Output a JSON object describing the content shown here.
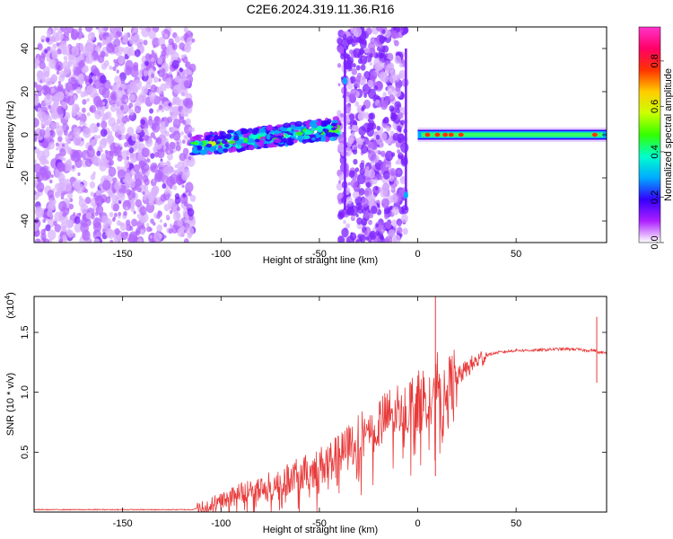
{
  "page": {
    "title": "C2E6.2024.319.11.36.R16"
  },
  "chart_data": [
    {
      "type": "heatmap",
      "name": "spectrogram",
      "xlabel": "Height of straight line (km)",
      "ylabel": "Frequency (Hz)",
      "xlim": [
        -195,
        96
      ],
      "ylim": [
        -50,
        50
      ],
      "xticks": [
        -150,
        -100,
        -50,
        0,
        50
      ],
      "yticks": [
        -40,
        -20,
        0,
        20,
        40
      ],
      "colorbar": {
        "label": "Normalized spectral amplitude",
        "range": [
          0,
          0.95
        ],
        "ticks": [
          0.0,
          0.2,
          0.4,
          0.6,
          0.8
        ],
        "tick_labels": [
          "0.0",
          "0.2",
          "0.4",
          "0.6",
          "0.8"
        ],
        "colormap": [
          "#ffffff",
          "#ad1fff",
          "#3300ff",
          "#00aaff",
          "#00ffcc",
          "#33ff00",
          "#ccff00",
          "#ffcc00",
          "#ff3300",
          "#ff0066",
          "#ff33cc"
        ]
      },
      "regions": [
        {
          "description": "broadband noise",
          "x_range": [
            -195,
            -114
          ],
          "freq_range": [
            -50,
            50
          ],
          "amplitude": 0.08
        },
        {
          "description": "signal band",
          "x_range": [
            -114,
            -40
          ],
          "freq_center_start": -5,
          "freq_center_end": 3,
          "amplitude": 0.35
        },
        {
          "description": "broadband noise",
          "x_range": [
            -40,
            -6
          ],
          "freq_range": [
            -50,
            50
          ],
          "amplitude": 0.12
        },
        {
          "description": "carrier band",
          "x_range": [
            0,
            96
          ],
          "freq_center": 0,
          "amplitude": 0.55
        }
      ]
    },
    {
      "type": "line",
      "name": "snr",
      "xlabel": "Height of straight line (km)",
      "ylabel": "SNR (10 * v/v)",
      "y_multiplier_label": "(x10",
      "y_multiplier_exponent": "4",
      "y_multiplier_close": ")",
      "xlim": [
        -195,
        96
      ],
      "ylim": [
        0,
        1.8
      ],
      "xticks": [
        -150,
        -100,
        -50,
        0,
        50
      ],
      "yticks": [
        0.5,
        1.0,
        1.5
      ],
      "ytick_labels": [
        "0.5",
        "1.0",
        "1.5"
      ],
      "color": "#e83a3a",
      "series": [
        {
          "x": [
            -195,
            -150,
            -115,
            -110,
            -105,
            -100,
            -95,
            -90,
            -85,
            -80,
            -75,
            -70,
            -65,
            -60,
            -55,
            -50,
            -45,
            -40,
            -35,
            -30,
            -25,
            -20,
            -15,
            -10,
            -5,
            0,
            5,
            8,
            10,
            12,
            15,
            20,
            25,
            30,
            35,
            40,
            50,
            60,
            70,
            80,
            85,
            90,
            92,
            96
          ],
          "y": [
            0.02,
            0.02,
            0.02,
            0.04,
            0.07,
            0.1,
            0.13,
            0.16,
            0.18,
            0.2,
            0.22,
            0.26,
            0.28,
            0.31,
            0.34,
            0.38,
            0.43,
            0.46,
            0.55,
            0.62,
            0.68,
            0.74,
            0.8,
            0.86,
            0.88,
            0.92,
            0.98,
            0.9,
            1.1,
            0.8,
            1.0,
            1.12,
            1.2,
            1.26,
            1.31,
            1.33,
            1.35,
            1.35,
            1.36,
            1.36,
            1.35,
            1.35,
            1.33,
            1.33
          ]
        }
      ]
    }
  ]
}
